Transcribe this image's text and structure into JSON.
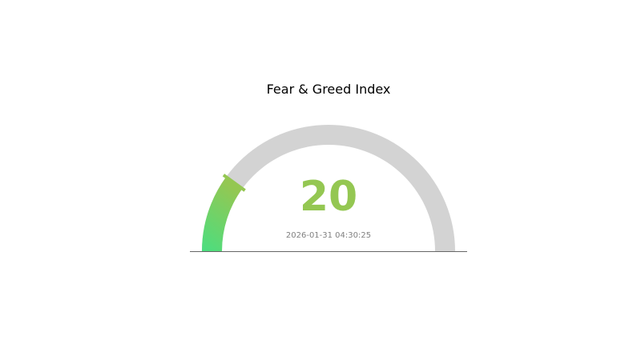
{
  "chart_data": {
    "type": "gauge",
    "title": "Fear & Greed Index",
    "value": 20,
    "range": [
      0,
      100
    ],
    "value_label": "20",
    "timestamp": "2026-01-31 04:30:25",
    "colors": {
      "fill_start": "#4ade80",
      "fill_end": "#94c752",
      "track": "#d3d3d3",
      "value_text": "#94c752",
      "timestamp_text": "#808080",
      "baseline": "#666666"
    }
  }
}
